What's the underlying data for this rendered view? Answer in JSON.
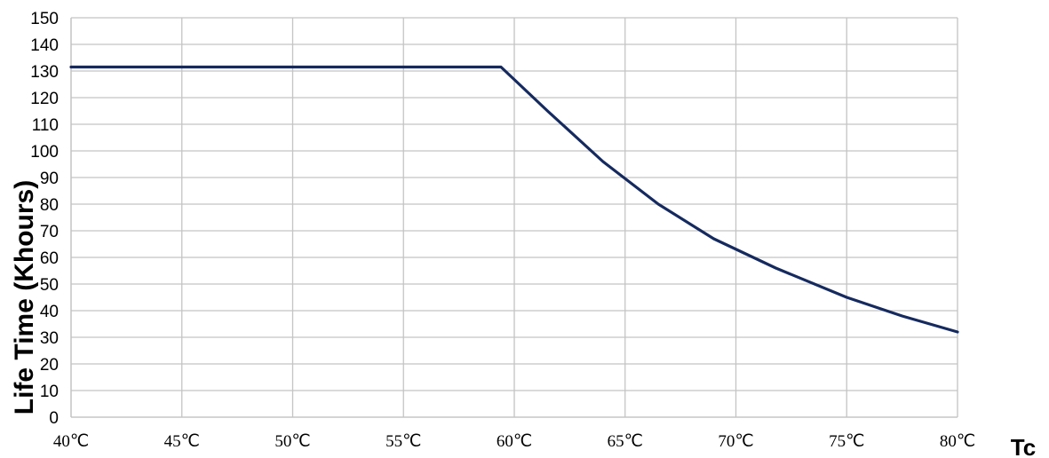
{
  "chart_data": {
    "type": "line",
    "xlabel": "Tc",
    "ylabel": "Life Time (Khours)",
    "x_unit": "℃",
    "xlim": [
      40,
      80
    ],
    "ylim": [
      0,
      150
    ],
    "x_ticks": [
      40,
      45,
      50,
      55,
      60,
      65,
      70,
      75,
      80
    ],
    "y_ticks": [
      0,
      10,
      20,
      30,
      40,
      50,
      60,
      70,
      80,
      90,
      100,
      110,
      120,
      130,
      140,
      150
    ],
    "x_tick_labels": [
      "40℃",
      "45℃",
      "50℃",
      "55℃",
      "60℃",
      "65℃",
      "70℃",
      "75℃",
      "80℃"
    ],
    "y_tick_labels": [
      "0",
      "10",
      "20",
      "30",
      "40",
      "50",
      "60",
      "70",
      "80",
      "90",
      "100",
      "110",
      "120",
      "130",
      "140",
      "150"
    ],
    "grid": true,
    "legend": "none",
    "series": [
      {
        "color": "#152a5e",
        "x": [
          40,
          59.4,
          61.5,
          64,
          66.5,
          69,
          71.8,
          75,
          77.5,
          80
        ],
        "y": [
          131.5,
          131.5,
          115,
          96,
          80,
          67,
          56,
          45,
          38,
          32
        ]
      }
    ]
  }
}
